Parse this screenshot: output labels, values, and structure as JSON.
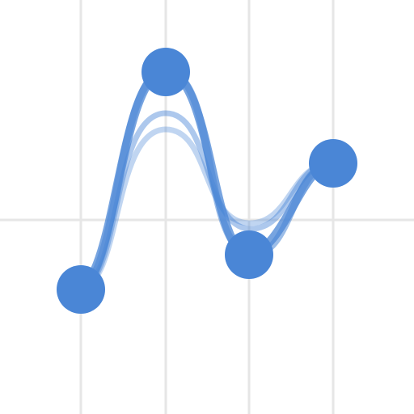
{
  "colors": {
    "background": "#ffffff",
    "grid": "#e6e6e6",
    "curve": "#4a86d6",
    "control_point": "#4a86d6"
  },
  "diagram": {
    "type": "spline-control-points",
    "control_point_count": 4,
    "overlay_curve_count": 4,
    "vertical_grid_line_count": 4,
    "horizontal_grid_line_count": 1
  }
}
